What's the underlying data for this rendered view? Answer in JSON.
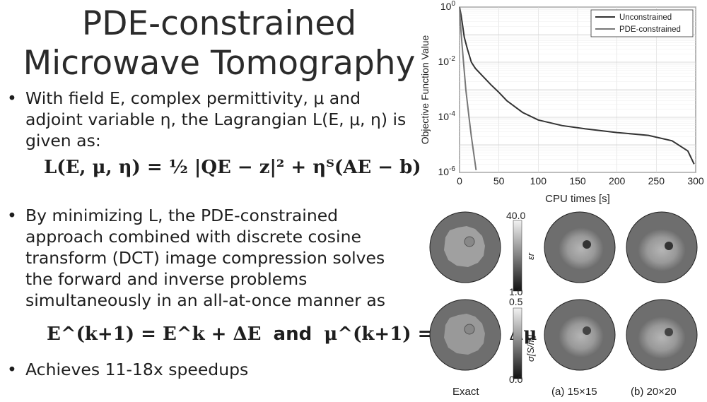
{
  "slide": {
    "title_line1": "PDE-constrained",
    "title_line2": "Microwave Tomography",
    "bullets": [
      "With  field E, complex permittivity, μ and adjoint variable η,  the Lagrangian L(E, μ, η) is given as:",
      "By minimizing L, the PDE-constrained approach combined with discrete cosine transform (DCT) image compression solves the forward and inverse problems simultaneously in an all-at-once manner as",
      "Achieves 11-18x speedups"
    ],
    "equation1": "L(E, μ, η) = ½ |QE − z|² + ηᵀ(AE − b)",
    "equation2_left": "E^(k+1) = E^k + ΔE",
    "equation2_and": "and",
    "equation2_right": "μ^(k+1) = μ^k + Δμ",
    "bullet_marker": "•"
  },
  "chart_data": {
    "type": "line",
    "xlabel": "CPU times [s]",
    "ylabel": "Objective Function Value",
    "xlim": [
      0,
      300
    ],
    "ylim": [
      1e-06,
      1
    ],
    "yscale": "log",
    "xticks": [
      "0",
      "50",
      "100",
      "150",
      "200",
      "250",
      "300"
    ],
    "yticks": [
      "10^0",
      "10^-2",
      "10^-4",
      "10^-6"
    ],
    "grid": true,
    "legend_position": "top-right",
    "series": [
      {
        "name": "Unconstrained",
        "color": "#333333",
        "points": [
          [
            0,
            1
          ],
          [
            2,
            0.5
          ],
          [
            4,
            0.2
          ],
          [
            6,
            0.08
          ],
          [
            10,
            0.03
          ],
          [
            15,
            0.01
          ],
          [
            20,
            0.006
          ],
          [
            30,
            0.003
          ],
          [
            40,
            0.0015
          ],
          [
            50,
            0.0008
          ],
          [
            60,
            0.0004
          ],
          [
            80,
            0.00015
          ],
          [
            100,
            8e-05
          ],
          [
            130,
            5e-05
          ],
          [
            160,
            3.8e-05
          ],
          [
            200,
            2.8e-05
          ],
          [
            240,
            2.2e-05
          ],
          [
            270,
            1.4e-05
          ],
          [
            290,
            6e-06
          ],
          [
            298,
            2e-06
          ]
        ]
      },
      {
        "name": "PDE-constrained",
        "color": "#777777",
        "points": [
          [
            0,
            1
          ],
          [
            1,
            0.3
          ],
          [
            3,
            0.05
          ],
          [
            5,
            0.01
          ],
          [
            8,
            0.001
          ],
          [
            12,
            0.0001
          ],
          [
            15,
            2e-05
          ],
          [
            18,
            5e-06
          ],
          [
            21,
            1.2e-06
          ]
        ]
      }
    ]
  },
  "images": {
    "colorbar_top": {
      "max": "40.0",
      "min": "1.0",
      "label": "εr"
    },
    "colorbar_bottom": {
      "max": "0.5",
      "min": "0.0",
      "label": "σ[S/m]"
    },
    "labels": [
      "Exact",
      "(a) 15×15",
      "(b) 20×20"
    ]
  }
}
